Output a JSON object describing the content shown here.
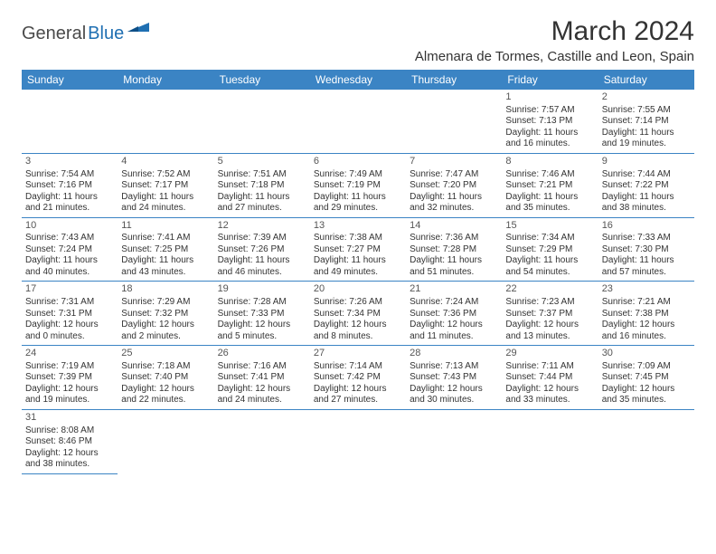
{
  "logo": {
    "part1": "General",
    "part2": "Blue"
  },
  "title": "March 2024",
  "location": "Almenara de Tormes, Castille and Leon, Spain",
  "colors": {
    "header_bg": "#3b84c4",
    "header_fg": "#ffffff",
    "cell_border": "#3b84c4",
    "logo_gray": "#4a4a4a",
    "logo_blue": "#1f6fb2",
    "text": "#333333"
  },
  "weekdays": [
    "Sunday",
    "Monday",
    "Tuesday",
    "Wednesday",
    "Thursday",
    "Friday",
    "Saturday"
  ],
  "cells": [
    null,
    null,
    null,
    null,
    null,
    {
      "day": "1",
      "sunrise": "Sunrise: 7:57 AM",
      "sunset": "Sunset: 7:13 PM",
      "dl1": "Daylight: 11 hours",
      "dl2": "and 16 minutes."
    },
    {
      "day": "2",
      "sunrise": "Sunrise: 7:55 AM",
      "sunset": "Sunset: 7:14 PM",
      "dl1": "Daylight: 11 hours",
      "dl2": "and 19 minutes."
    },
    {
      "day": "3",
      "sunrise": "Sunrise: 7:54 AM",
      "sunset": "Sunset: 7:16 PM",
      "dl1": "Daylight: 11 hours",
      "dl2": "and 21 minutes."
    },
    {
      "day": "4",
      "sunrise": "Sunrise: 7:52 AM",
      "sunset": "Sunset: 7:17 PM",
      "dl1": "Daylight: 11 hours",
      "dl2": "and 24 minutes."
    },
    {
      "day": "5",
      "sunrise": "Sunrise: 7:51 AM",
      "sunset": "Sunset: 7:18 PM",
      "dl1": "Daylight: 11 hours",
      "dl2": "and 27 minutes."
    },
    {
      "day": "6",
      "sunrise": "Sunrise: 7:49 AM",
      "sunset": "Sunset: 7:19 PM",
      "dl1": "Daylight: 11 hours",
      "dl2": "and 29 minutes."
    },
    {
      "day": "7",
      "sunrise": "Sunrise: 7:47 AM",
      "sunset": "Sunset: 7:20 PM",
      "dl1": "Daylight: 11 hours",
      "dl2": "and 32 minutes."
    },
    {
      "day": "8",
      "sunrise": "Sunrise: 7:46 AM",
      "sunset": "Sunset: 7:21 PM",
      "dl1": "Daylight: 11 hours",
      "dl2": "and 35 minutes."
    },
    {
      "day": "9",
      "sunrise": "Sunrise: 7:44 AM",
      "sunset": "Sunset: 7:22 PM",
      "dl1": "Daylight: 11 hours",
      "dl2": "and 38 minutes."
    },
    {
      "day": "10",
      "sunrise": "Sunrise: 7:43 AM",
      "sunset": "Sunset: 7:24 PM",
      "dl1": "Daylight: 11 hours",
      "dl2": "and 40 minutes."
    },
    {
      "day": "11",
      "sunrise": "Sunrise: 7:41 AM",
      "sunset": "Sunset: 7:25 PM",
      "dl1": "Daylight: 11 hours",
      "dl2": "and 43 minutes."
    },
    {
      "day": "12",
      "sunrise": "Sunrise: 7:39 AM",
      "sunset": "Sunset: 7:26 PM",
      "dl1": "Daylight: 11 hours",
      "dl2": "and 46 minutes."
    },
    {
      "day": "13",
      "sunrise": "Sunrise: 7:38 AM",
      "sunset": "Sunset: 7:27 PM",
      "dl1": "Daylight: 11 hours",
      "dl2": "and 49 minutes."
    },
    {
      "day": "14",
      "sunrise": "Sunrise: 7:36 AM",
      "sunset": "Sunset: 7:28 PM",
      "dl1": "Daylight: 11 hours",
      "dl2": "and 51 minutes."
    },
    {
      "day": "15",
      "sunrise": "Sunrise: 7:34 AM",
      "sunset": "Sunset: 7:29 PM",
      "dl1": "Daylight: 11 hours",
      "dl2": "and 54 minutes."
    },
    {
      "day": "16",
      "sunrise": "Sunrise: 7:33 AM",
      "sunset": "Sunset: 7:30 PM",
      "dl1": "Daylight: 11 hours",
      "dl2": "and 57 minutes."
    },
    {
      "day": "17",
      "sunrise": "Sunrise: 7:31 AM",
      "sunset": "Sunset: 7:31 PM",
      "dl1": "Daylight: 12 hours",
      "dl2": "and 0 minutes."
    },
    {
      "day": "18",
      "sunrise": "Sunrise: 7:29 AM",
      "sunset": "Sunset: 7:32 PM",
      "dl1": "Daylight: 12 hours",
      "dl2": "and 2 minutes."
    },
    {
      "day": "19",
      "sunrise": "Sunrise: 7:28 AM",
      "sunset": "Sunset: 7:33 PM",
      "dl1": "Daylight: 12 hours",
      "dl2": "and 5 minutes."
    },
    {
      "day": "20",
      "sunrise": "Sunrise: 7:26 AM",
      "sunset": "Sunset: 7:34 PM",
      "dl1": "Daylight: 12 hours",
      "dl2": "and 8 minutes."
    },
    {
      "day": "21",
      "sunrise": "Sunrise: 7:24 AM",
      "sunset": "Sunset: 7:36 PM",
      "dl1": "Daylight: 12 hours",
      "dl2": "and 11 minutes."
    },
    {
      "day": "22",
      "sunrise": "Sunrise: 7:23 AM",
      "sunset": "Sunset: 7:37 PM",
      "dl1": "Daylight: 12 hours",
      "dl2": "and 13 minutes."
    },
    {
      "day": "23",
      "sunrise": "Sunrise: 7:21 AM",
      "sunset": "Sunset: 7:38 PM",
      "dl1": "Daylight: 12 hours",
      "dl2": "and 16 minutes."
    },
    {
      "day": "24",
      "sunrise": "Sunrise: 7:19 AM",
      "sunset": "Sunset: 7:39 PM",
      "dl1": "Daylight: 12 hours",
      "dl2": "and 19 minutes."
    },
    {
      "day": "25",
      "sunrise": "Sunrise: 7:18 AM",
      "sunset": "Sunset: 7:40 PM",
      "dl1": "Daylight: 12 hours",
      "dl2": "and 22 minutes."
    },
    {
      "day": "26",
      "sunrise": "Sunrise: 7:16 AM",
      "sunset": "Sunset: 7:41 PM",
      "dl1": "Daylight: 12 hours",
      "dl2": "and 24 minutes."
    },
    {
      "day": "27",
      "sunrise": "Sunrise: 7:14 AM",
      "sunset": "Sunset: 7:42 PM",
      "dl1": "Daylight: 12 hours",
      "dl2": "and 27 minutes."
    },
    {
      "day": "28",
      "sunrise": "Sunrise: 7:13 AM",
      "sunset": "Sunset: 7:43 PM",
      "dl1": "Daylight: 12 hours",
      "dl2": "and 30 minutes."
    },
    {
      "day": "29",
      "sunrise": "Sunrise: 7:11 AM",
      "sunset": "Sunset: 7:44 PM",
      "dl1": "Daylight: 12 hours",
      "dl2": "and 33 minutes."
    },
    {
      "day": "30",
      "sunrise": "Sunrise: 7:09 AM",
      "sunset": "Sunset: 7:45 PM",
      "dl1": "Daylight: 12 hours",
      "dl2": "and 35 minutes."
    },
    {
      "day": "31",
      "sunrise": "Sunrise: 8:08 AM",
      "sunset": "Sunset: 8:46 PM",
      "dl1": "Daylight: 12 hours",
      "dl2": "and 38 minutes."
    },
    null,
    null,
    null,
    null,
    null,
    null
  ]
}
